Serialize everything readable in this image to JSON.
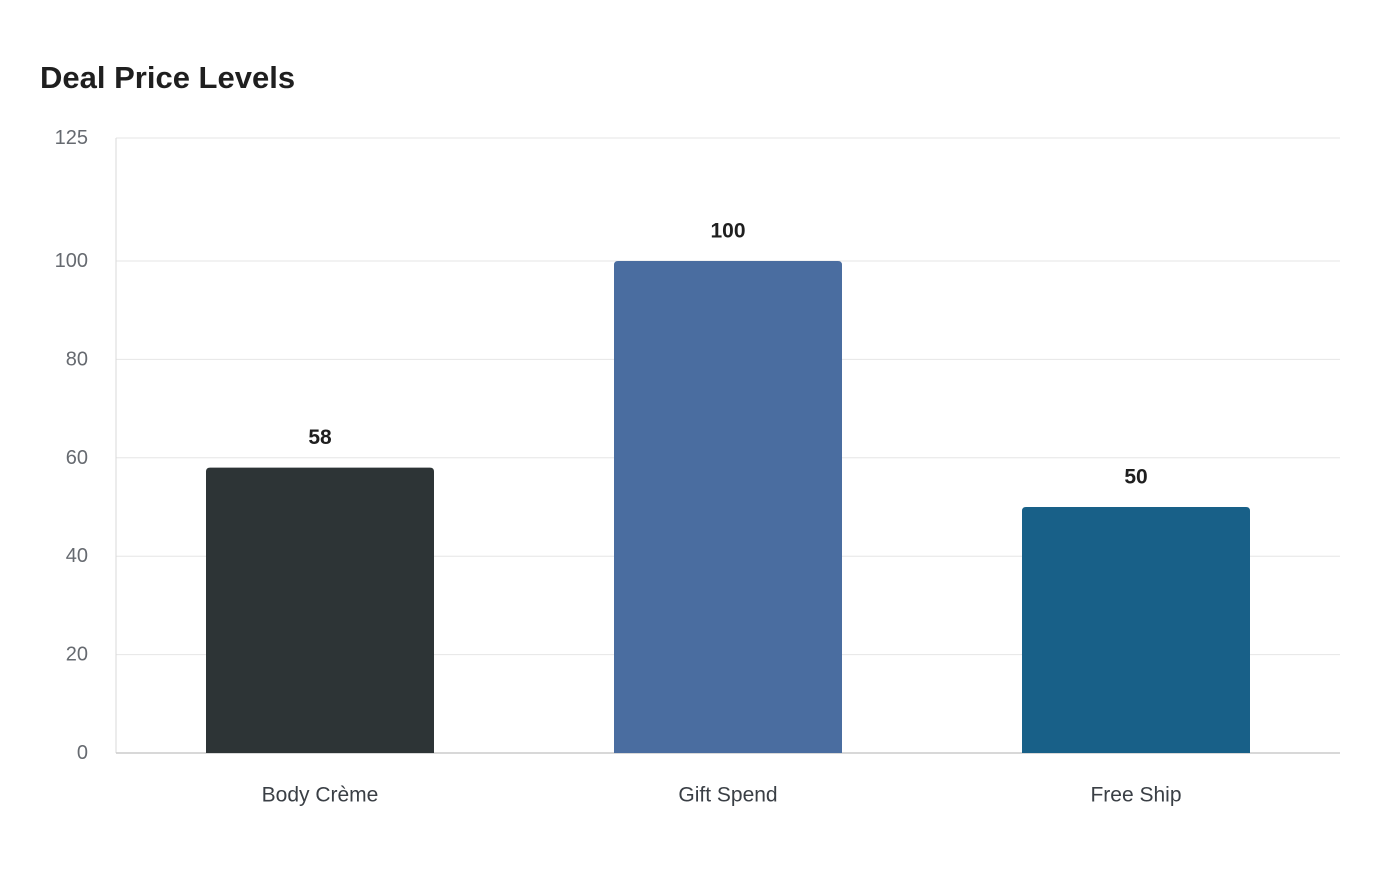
{
  "chart_data": {
    "type": "bar",
    "title": "Deal Price Levels",
    "xlabel": "",
    "ylabel": "",
    "categories": [
      "Body Crème",
      "Gift Spend",
      "Free Ship"
    ],
    "values": [
      58,
      100,
      50
    ],
    "data_labels": [
      "58",
      "100",
      "50"
    ],
    "colors": [
      "#2d3436",
      "#4a6da0",
      "#186088"
    ],
    "ylim": [
      0,
      125
    ],
    "yticks": [
      0,
      20,
      40,
      60,
      80,
      100,
      125
    ],
    "grid": true,
    "legend": "none"
  }
}
